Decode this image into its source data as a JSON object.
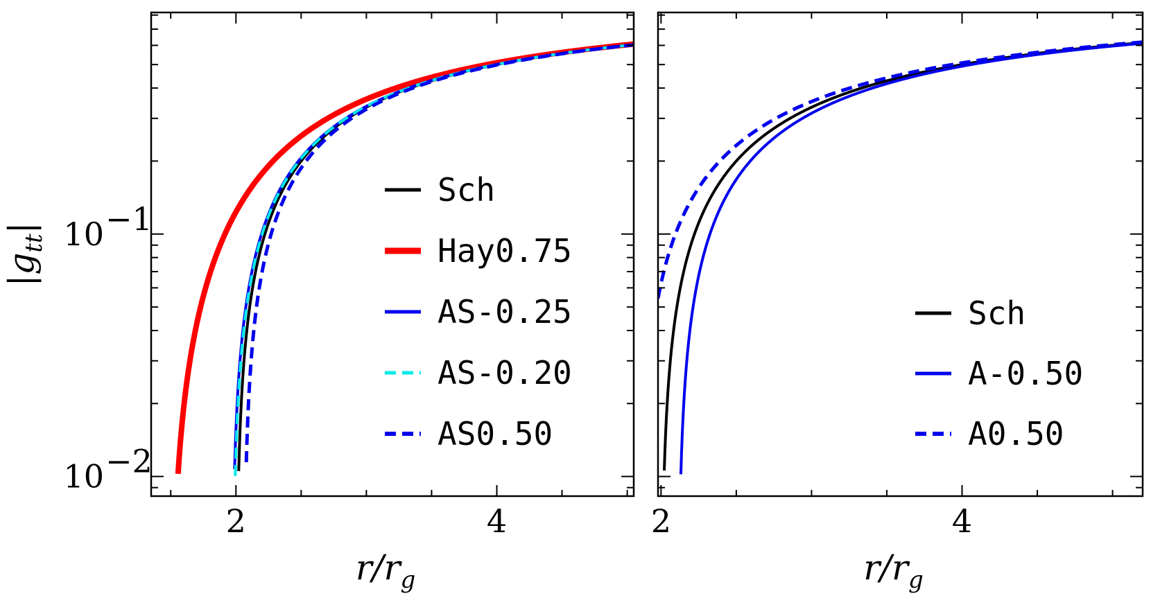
{
  "chart_data": [
    {
      "type": "line",
      "panel": "left",
      "xlabel": "r/r_g",
      "xlabel_main": "r/r",
      "xlabel_sub": "g",
      "ylabel": "|g_tt|",
      "ylabel_main": "|g",
      "ylabel_sub": "tt",
      "ylabel_close": "|",
      "yscale": "log",
      "xlim": [
        1.35,
        5.05
      ],
      "ylim": [
        0.0083,
        0.82
      ],
      "x_ticks": [
        {
          "value": 2,
          "label": "2"
        },
        {
          "value": 4,
          "label": "4"
        }
      ],
      "y_ticks": [
        {
          "value": 0.01,
          "base": "10",
          "exp": "−2"
        },
        {
          "value": 0.1,
          "base": "10",
          "exp": "−1"
        }
      ],
      "legend_position": "center-right",
      "series": [
        {
          "name": "Sch",
          "color": "#000000",
          "style": "solid",
          "width": 4,
          "model": "sch",
          "params": {}
        },
        {
          "name": "Hay0.75",
          "color": "#ff0000",
          "style": "solid",
          "width": 8,
          "model": "hay",
          "params": {
            "l": 0.75
          }
        },
        {
          "name": "AS-0.25",
          "color": "#0000ee",
          "style": "solid",
          "width": 4,
          "model": "as",
          "params": {
            "c": -0.25
          }
        },
        {
          "name": "AS-0.20",
          "color": "#00eaea",
          "style": "dashed",
          "width": 4,
          "model": "as",
          "params": {
            "c": -0.2
          }
        },
        {
          "name": "AS0.50",
          "color": "#0000ee",
          "style": "dashed",
          "width": 5,
          "model": "as",
          "params": {
            "c": 0.5
          }
        }
      ]
    },
    {
      "type": "line",
      "panel": "right",
      "xlabel": "r/r_g",
      "xlabel_main": "r/r",
      "xlabel_sub": "g",
      "yscale": "log",
      "xlim": [
        1.98,
        5.2
      ],
      "ylim": [
        0.0083,
        0.82
      ],
      "x_ticks": [
        {
          "value": 2,
          "label": "2"
        },
        {
          "value": 4,
          "label": "4"
        }
      ],
      "legend_position": "bottom-right",
      "series": [
        {
          "name": "Sch",
          "color": "#000000",
          "style": "solid",
          "width": 4,
          "model": "sch",
          "params": {}
        },
        {
          "name": "A-0.50",
          "color": "#0000ee",
          "style": "solid",
          "width": 4,
          "model": "a",
          "params": {
            "c": -0.5
          }
        },
        {
          "name": "A0.50",
          "color": "#0000ee",
          "style": "dashed",
          "width": 5,
          "model": "a",
          "params": {
            "c": 0.5
          }
        }
      ]
    }
  ]
}
